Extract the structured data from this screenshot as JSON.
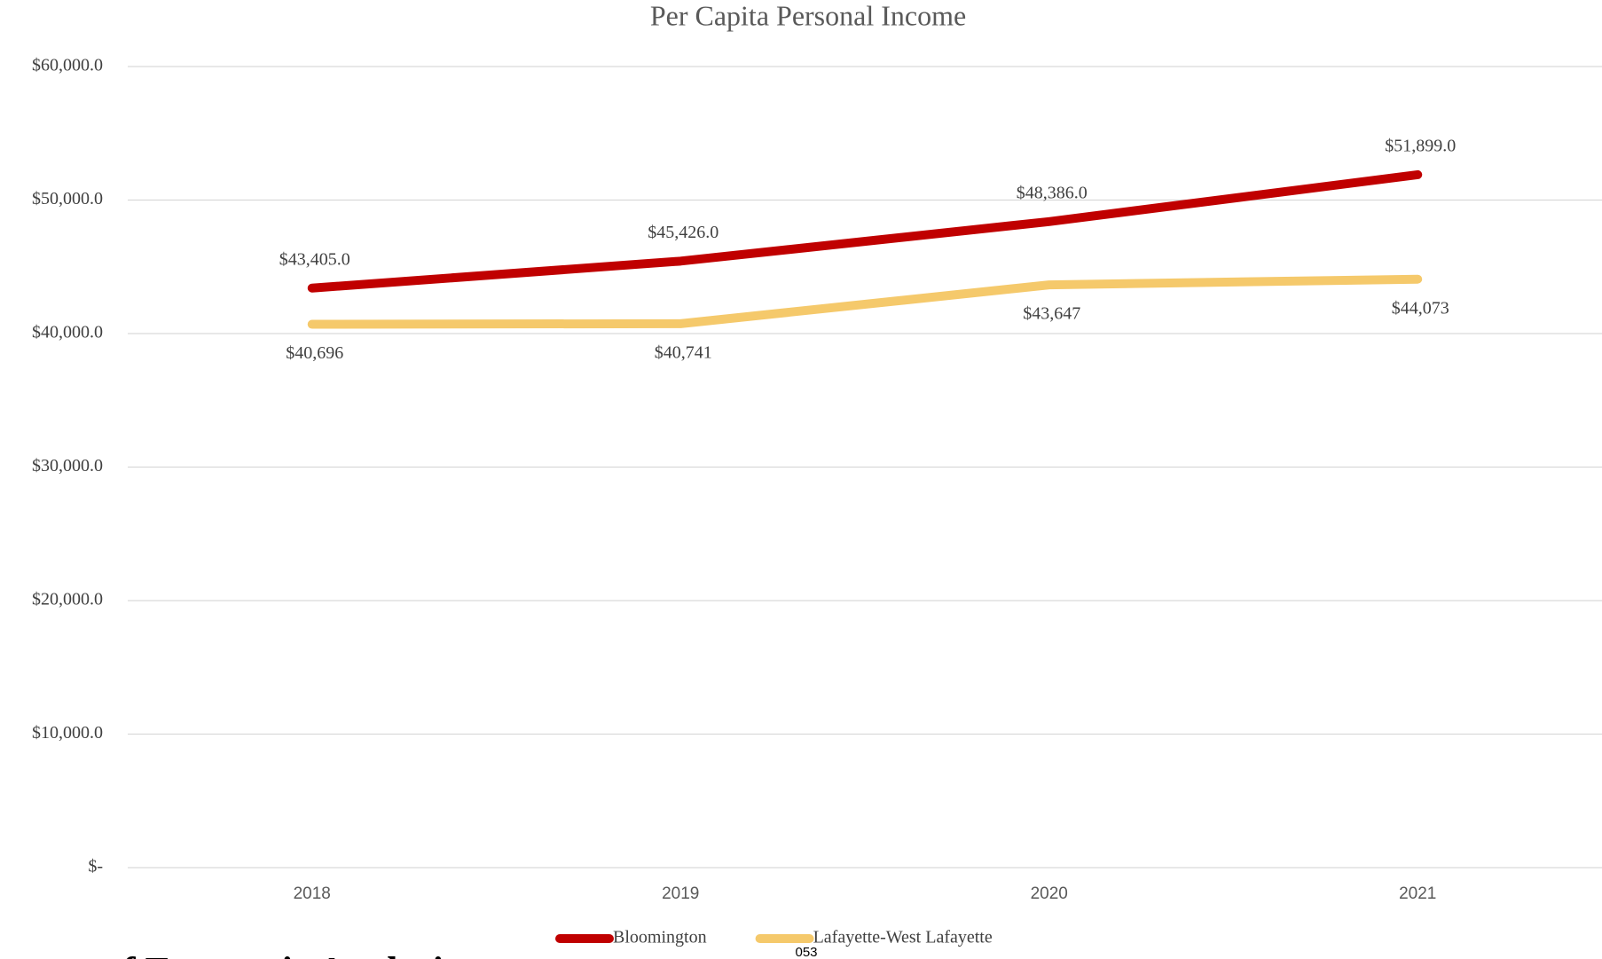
{
  "chart_data": {
    "type": "line",
    "title": "Per Capita Personal Income",
    "categories": [
      "2018",
      "2019",
      "2020",
      "2021"
    ],
    "series": [
      {
        "name": "Bloomington",
        "color": "#c00000",
        "values": [
          43405,
          45426,
          48386,
          51899
        ],
        "value_labels": [
          "$43,405.0",
          "$45,426.0",
          "$48,386.0",
          "$51,899.0"
        ]
      },
      {
        "name": "Lafayette-West Lafayette",
        "color": "#f5c96b",
        "values": [
          40696,
          40741,
          43647,
          44073
        ],
        "value_labels": [
          "$40,696",
          "$40,741",
          "$43,647",
          "$44,073"
        ]
      }
    ],
    "ylim": [
      0,
      60000
    ],
    "yticks": [
      {
        "value": 0,
        "label": "$-"
      },
      {
        "value": 10000,
        "label": "$10,000.0"
      },
      {
        "value": 20000,
        "label": "$20,000.0"
      },
      {
        "value": 30000,
        "label": "$30,000.0"
      },
      {
        "value": 40000,
        "label": "$40,000.0"
      },
      {
        "value": 50000,
        "label": "$50,000.0"
      },
      {
        "value": 60000,
        "label": "$60,000.0"
      }
    ],
    "grid": true,
    "legend": "bottom",
    "annotations": [
      "f Economic Analysis",
      "053"
    ]
  }
}
